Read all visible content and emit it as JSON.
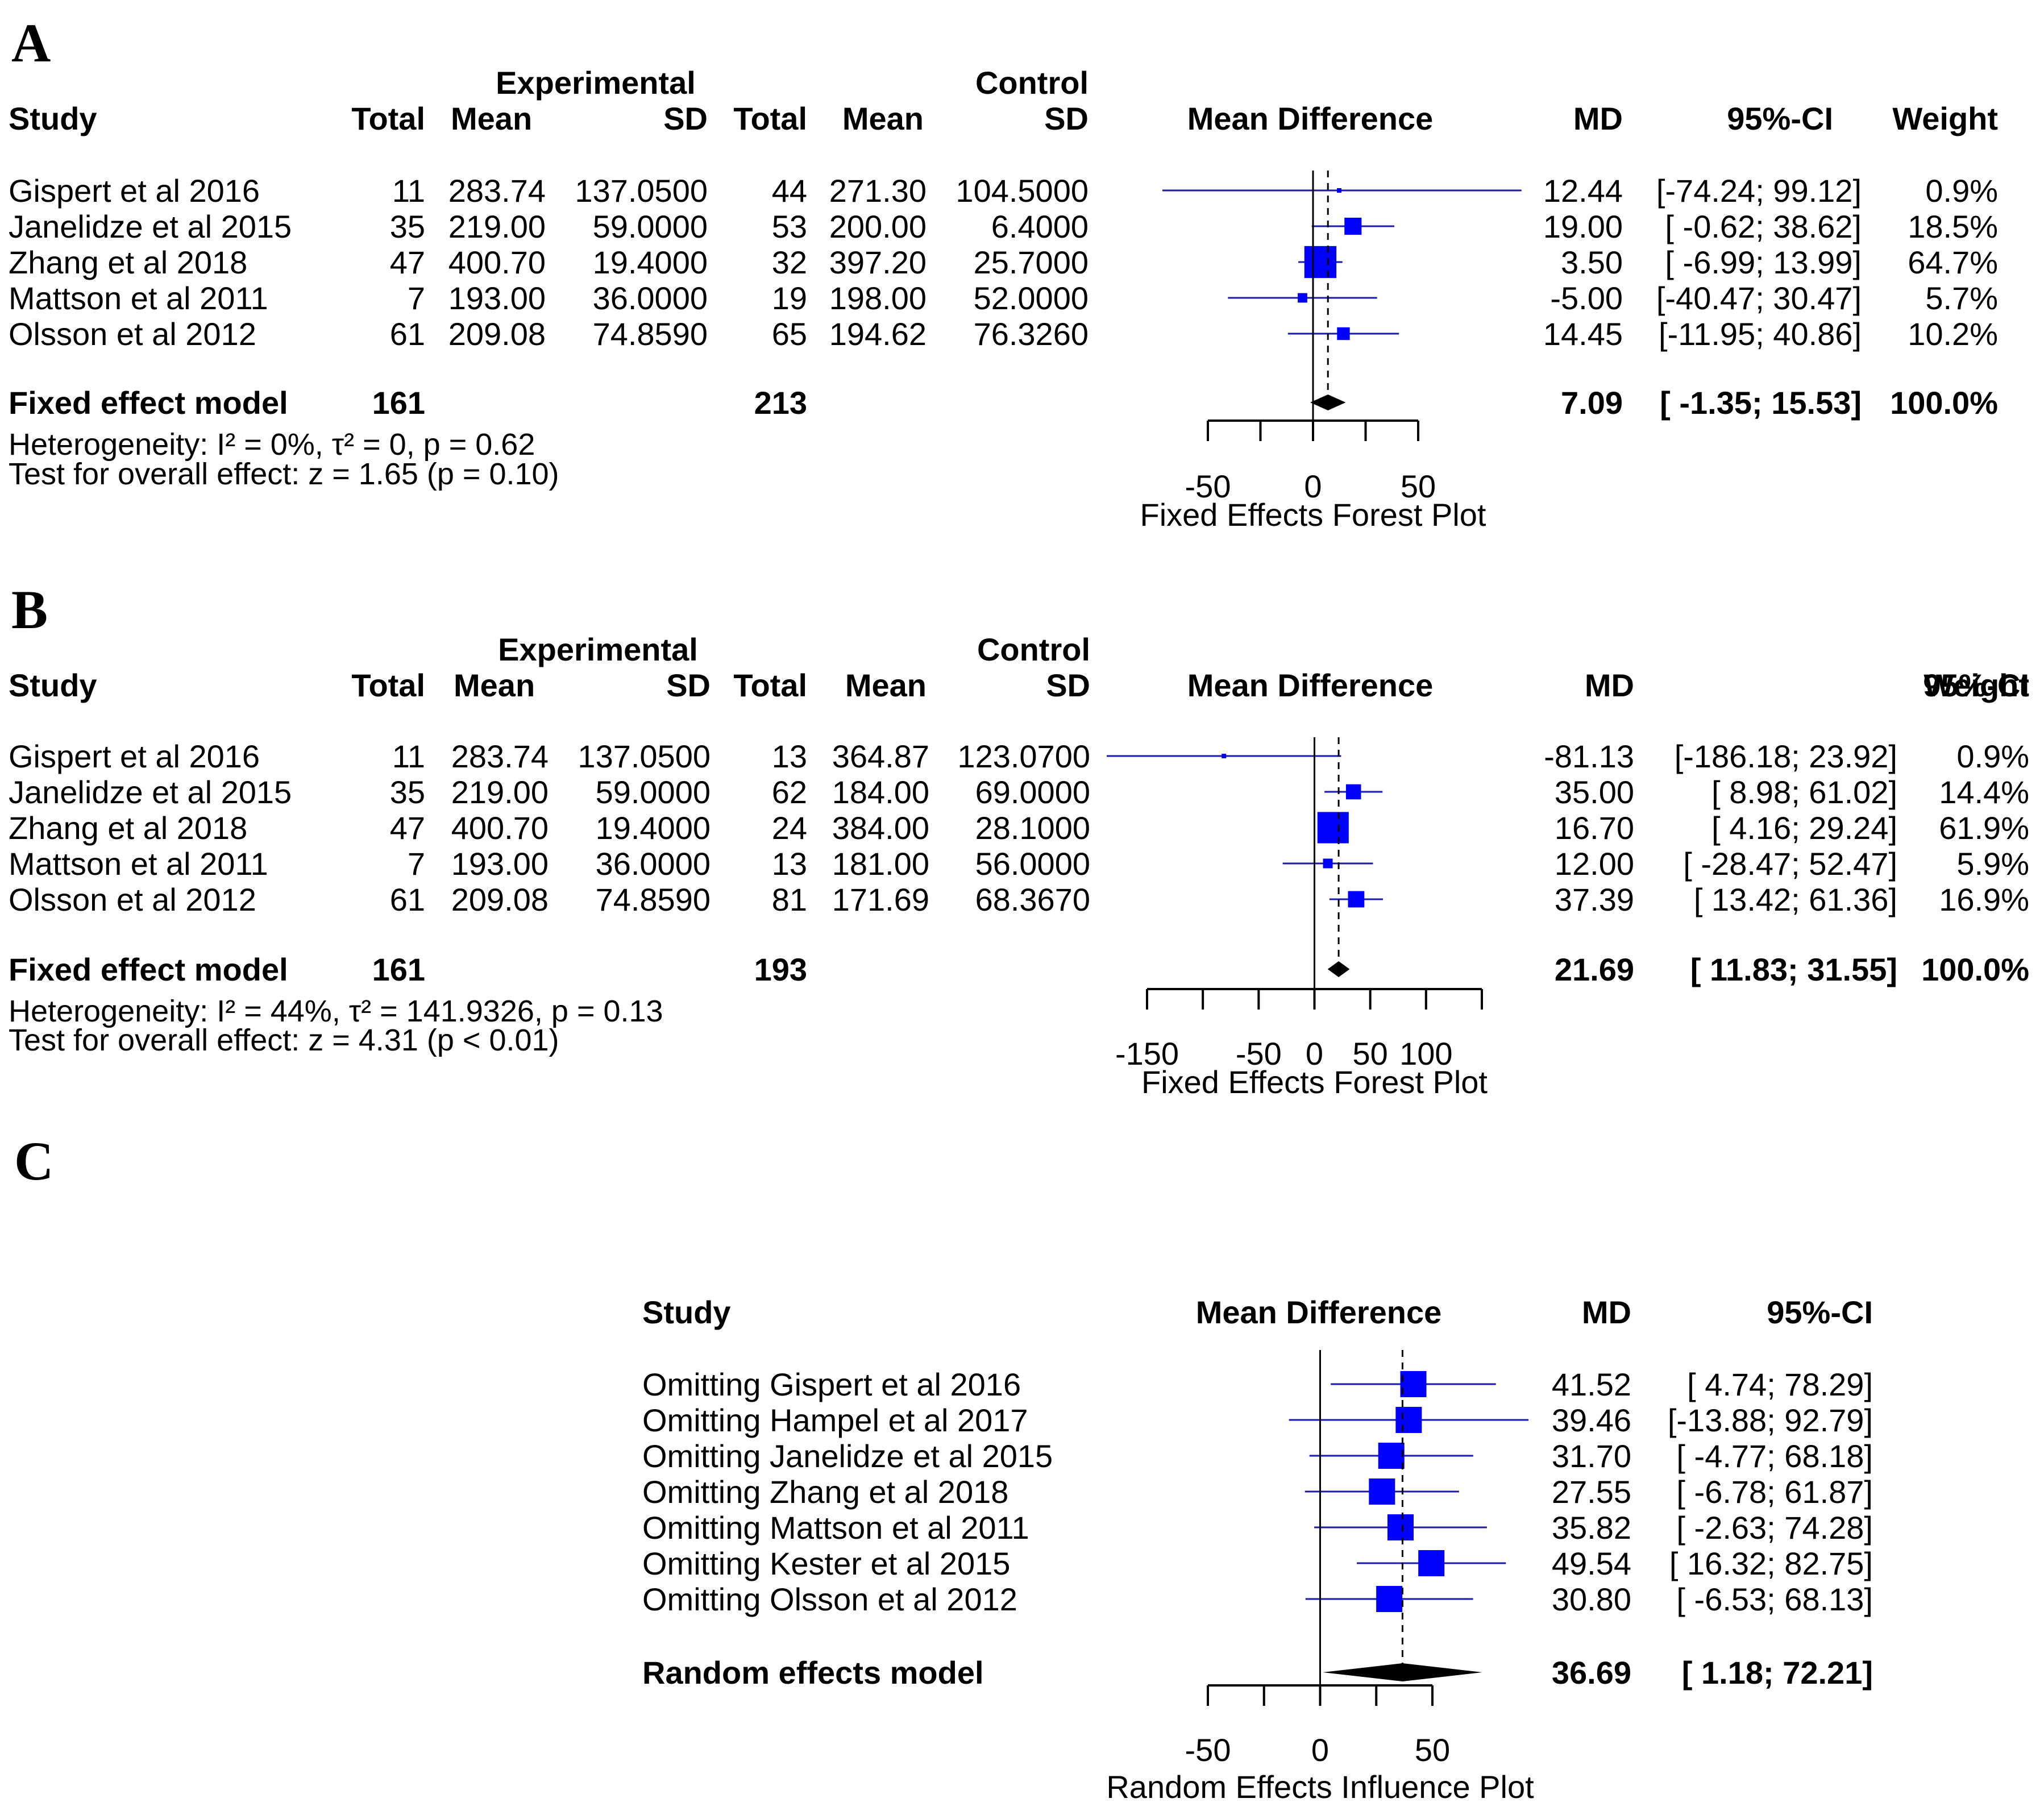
{
  "chart_data": [
    {
      "type": "forest",
      "panel": "A",
      "headers": {
        "exp_group": "Experimental",
        "ctrl_group": "Control",
        "study": "Study",
        "total": "Total",
        "mean": "Mean",
        "sd": "SD",
        "plot": "Mean Difference",
        "md": "MD",
        "ci": "95%-CI",
        "weight": "Weight"
      },
      "studies": [
        {
          "study": "Gispert et al  2016",
          "e_total": "11",
          "e_mean": "283.74",
          "e_sd": "137.0500",
          "c_total": "44",
          "c_mean": "271.30",
          "c_sd": "104.5000",
          "md_text": "12.44",
          "ci_text": "[-74.24; 99.12]",
          "weight_text": "0.9%",
          "md": 12.44,
          "lo": -74.24,
          "hi": 99.12,
          "weight": 0.9
        },
        {
          "study": "Janelidze et al  2015",
          "e_total": "35",
          "e_mean": "219.00",
          "e_sd": "59.0000",
          "c_total": "53",
          "c_mean": "200.00",
          "c_sd": "6.4000",
          "md_text": "19.00",
          "ci_text": "[ -0.62; 38.62]",
          "weight_text": "18.5%",
          "md": 19.0,
          "lo": -0.62,
          "hi": 38.62,
          "weight": 18.5
        },
        {
          "study": "Zhang et al  2018",
          "e_total": "47",
          "e_mean": "400.70",
          "e_sd": "19.4000",
          "c_total": "32",
          "c_mean": "397.20",
          "c_sd": "25.7000",
          "md_text": "3.50",
          "ci_text": "[ -6.99; 13.99]",
          "weight_text": "64.7%",
          "md": 3.5,
          "lo": -6.99,
          "hi": 13.99,
          "weight": 64.7
        },
        {
          "study": "Mattson et al  2011",
          "e_total": "7",
          "e_mean": "193.00",
          "e_sd": "36.0000",
          "c_total": "19",
          "c_mean": "198.00",
          "c_sd": "52.0000",
          "md_text": "-5.00",
          "ci_text": "[-40.47; 30.47]",
          "weight_text": "5.7%",
          "md": -5.0,
          "lo": -40.47,
          "hi": 30.47,
          "weight": 5.7
        },
        {
          "study": "Olsson et al  2012",
          "e_total": "61",
          "e_mean": "209.08",
          "e_sd": "74.8590",
          "c_total": "65",
          "c_mean": "194.62",
          "c_sd": "76.3260",
          "md_text": "14.45",
          "ci_text": "[-11.95; 40.86]",
          "weight_text": "10.2%",
          "md": 14.45,
          "lo": -11.95,
          "hi": 40.86,
          "weight": 10.2
        }
      ],
      "pooled": {
        "label": "Fixed effect model",
        "e_total": "161",
        "c_total": "213",
        "md_text": "7.09",
        "ci_text": "[ -1.35; 15.53]",
        "weight_text": "100.0%",
        "md": 7.09,
        "lo": -1.35,
        "hi": 15.53
      },
      "heterogeneity": "Heterogeneity: I² = 0%, τ² = 0, p = 0.62",
      "overall_test": "Test for overall effect: z = 1.65 (p = 0.10)",
      "xlim": [
        -50,
        50
      ],
      "ticks": [
        -50,
        -25,
        0,
        25,
        50
      ],
      "tick_labels": [
        "-50",
        "",
        "0",
        "",
        "50"
      ],
      "xlabel": "Fixed Effects Forest Plot"
    },
    {
      "type": "forest",
      "panel": "B",
      "headers": {
        "exp_group": "Experimental",
        "ctrl_group": "Control",
        "study": "Study",
        "total": "Total",
        "mean": "Mean",
        "sd": "SD",
        "plot": "Mean Difference",
        "md": "MD",
        "ci": "95%-CI",
        "weight": "Weight"
      },
      "studies": [
        {
          "study": "Gispert et al  2016",
          "e_total": "11",
          "e_mean": "283.74",
          "e_sd": "137.0500",
          "c_total": "13",
          "c_mean": "364.87",
          "c_sd": "123.0700",
          "md_text": "-81.13",
          "ci_text": "[-186.18; 23.92]",
          "weight_text": "0.9%",
          "md": -81.13,
          "lo": -186.18,
          "hi": 23.92,
          "weight": 0.9
        },
        {
          "study": "Janelidze et al  2015",
          "e_total": "35",
          "e_mean": "219.00",
          "e_sd": "59.0000",
          "c_total": "62",
          "c_mean": "184.00",
          "c_sd": "69.0000",
          "md_text": "35.00",
          "ci_text": "[   8.98; 61.02]",
          "weight_text": "14.4%",
          "md": 35.0,
          "lo": 8.98,
          "hi": 61.02,
          "weight": 14.4
        },
        {
          "study": "Zhang et al  2018",
          "e_total": "47",
          "e_mean": "400.70",
          "e_sd": "19.4000",
          "c_total": "24",
          "c_mean": "384.00",
          "c_sd": "28.1000",
          "md_text": "16.70",
          "ci_text": "[   4.16; 29.24]",
          "weight_text": "61.9%",
          "md": 16.7,
          "lo": 4.16,
          "hi": 29.24,
          "weight": 61.9
        },
        {
          "study": "Mattson et al  2011",
          "e_total": "7",
          "e_mean": "193.00",
          "e_sd": "36.0000",
          "c_total": "13",
          "c_mean": "181.00",
          "c_sd": "56.0000",
          "md_text": "12.00",
          "ci_text": "[ -28.47; 52.47]",
          "weight_text": "5.9%",
          "md": 12.0,
          "lo": -28.47,
          "hi": 52.47,
          "weight": 5.9
        },
        {
          "study": "Olsson et al  2012",
          "e_total": "61",
          "e_mean": "209.08",
          "e_sd": "74.8590",
          "c_total": "81",
          "c_mean": "171.69",
          "c_sd": "68.3670",
          "md_text": "37.39",
          "ci_text": "[  13.42; 61.36]",
          "weight_text": "16.9%",
          "md": 37.39,
          "lo": 13.42,
          "hi": 61.36,
          "weight": 16.9
        }
      ],
      "pooled": {
        "label": "Fixed effect model",
        "e_total": "161",
        "c_total": "193",
        "md_text": "21.69",
        "ci_text": "[  11.83; 31.55]",
        "weight_text": "100.0%",
        "md": 21.69,
        "lo": 11.83,
        "hi": 31.55
      },
      "heterogeneity": "Heterogeneity: I² = 44%, τ² = 141.9326, p = 0.13",
      "overall_test": "Test for overall effect: z = 4.31 (p < 0.01)",
      "xlim": [
        -150,
        150
      ],
      "ticks": [
        -150,
        -100,
        -50,
        0,
        50,
        100,
        150
      ],
      "tick_labels": [
        "-150",
        "",
        "-50",
        "0",
        "50",
        "100",
        ""
      ],
      "xlabel": "Fixed Effects Forest Plot"
    },
    {
      "type": "influence",
      "panel": "C",
      "headers": {
        "study": "Study",
        "plot": "Mean Difference",
        "md": "MD",
        "ci": "95%-CI"
      },
      "studies": [
        {
          "study": "Omitting Gispert et al  2016",
          "md_text": "41.52",
          "ci_text": "[  4.74; 78.29]",
          "md": 41.52,
          "lo": 4.74,
          "hi": 78.29
        },
        {
          "study": "Omitting Hampel et al  2017",
          "md_text": "39.46",
          "ci_text": "[-13.88; 92.79]",
          "md": 39.46,
          "lo": -13.88,
          "hi": 92.79
        },
        {
          "study": "Omitting Janelidze et al  2015",
          "md_text": "31.70",
          "ci_text": "[ -4.77; 68.18]",
          "md": 31.7,
          "lo": -4.77,
          "hi": 68.18
        },
        {
          "study": "Omitting Zhang et al  2018",
          "md_text": "27.55",
          "ci_text": "[ -6.78; 61.87]",
          "md": 27.55,
          "lo": -6.78,
          "hi": 61.87
        },
        {
          "study": "Omitting Mattson et al  2011",
          "md_text": "35.82",
          "ci_text": "[ -2.63; 74.28]",
          "md": 35.82,
          "lo": -2.63,
          "hi": 74.28
        },
        {
          "study": "Omitting Kester et al  2015",
          "md_text": "49.54",
          "ci_text": "[ 16.32; 82.75]",
          "md": 49.54,
          "lo": 16.32,
          "hi": 82.75
        },
        {
          "study": "Omitting Olsson et al  2012",
          "md_text": "30.80",
          "ci_text": "[ -6.53; 68.13]",
          "md": 30.8,
          "lo": -6.53,
          "hi": 68.13
        }
      ],
      "pooled": {
        "label": "Random effects model",
        "md_text": "36.69",
        "ci_text": "[  1.18; 72.21]",
        "md": 36.69,
        "lo": 1.18,
        "hi": 72.21
      },
      "xlim": [
        -50,
        50
      ],
      "ticks": [
        -50,
        -25,
        0,
        25,
        50
      ],
      "tick_labels": [
        "-50",
        "",
        "0",
        "",
        "50"
      ],
      "xlabel": "Random Effects Influence Plot"
    }
  ],
  "colors": {
    "square": "#0000ff",
    "ci_line": "#1a1aa6",
    "diamond": "#000000",
    "text": "#000000"
  }
}
